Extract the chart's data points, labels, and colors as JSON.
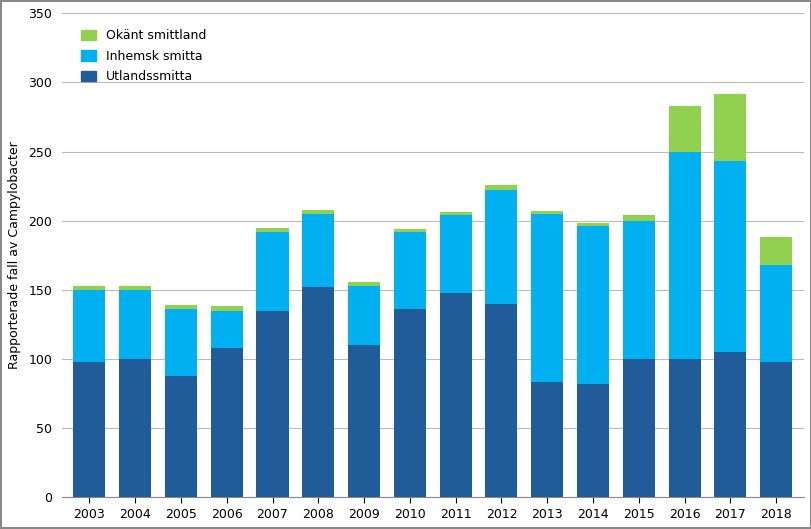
{
  "years": [
    2003,
    2004,
    2005,
    2006,
    2007,
    2008,
    2009,
    2010,
    2011,
    2012,
    2013,
    2014,
    2015,
    2016,
    2017,
    2018
  ],
  "utlandssmitta": [
    98,
    100,
    88,
    108,
    135,
    152,
    110,
    136,
    148,
    140,
    83,
    82,
    100,
    100,
    105,
    98
  ],
  "inhemsk_smitta": [
    52,
    50,
    48,
    27,
    57,
    53,
    43,
    56,
    56,
    82,
    122,
    114,
    100,
    150,
    138,
    70
  ],
  "okant_smittland": [
    3,
    3,
    3,
    3,
    3,
    3,
    3,
    2,
    2,
    4,
    2,
    2,
    4,
    33,
    49,
    20
  ],
  "color_utland": "#1F5C99",
  "color_inhemsk": "#00B0F0",
  "color_okant": "#92D050",
  "ylabel": "Rapporterade fall av Campylobacter",
  "ylim": [
    0,
    350
  ],
  "yticks": [
    0,
    50,
    100,
    150,
    200,
    250,
    300,
    350
  ],
  "legend_labels": [
    "Okänt smittland",
    "Inhemsk smitta",
    "Utlandssmitta"
  ],
  "background_color": "#FFFFFF",
  "bar_width": 0.7,
  "grid_color": "#BBBBBB",
  "figure_border_color": "#888888"
}
